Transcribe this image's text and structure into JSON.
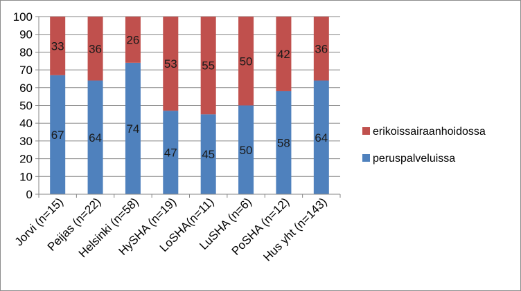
{
  "chart_data": {
    "type": "bar",
    "stacked": true,
    "categories": [
      "Jorvi (n=15)",
      "Peijas (n=22)",
      "Helsinki (n=58)",
      "HySHA (n=19)",
      "LoSHA(n=11)",
      "LuSHA (n=6)",
      "PoSHA (n=12)",
      "Hus yht (n=143)"
    ],
    "series": [
      {
        "name": "peruspalveluissa",
        "color": "#4f81bd",
        "values": [
          67,
          64,
          74,
          47,
          45,
          50,
          58,
          64
        ]
      },
      {
        "name": "erikoissairaanhoidossa",
        "color": "#c0504d",
        "values": [
          33,
          36,
          26,
          53,
          55,
          50,
          42,
          36
        ]
      }
    ],
    "ylim": [
      0,
      100
    ],
    "yticks": [
      0,
      10,
      20,
      30,
      40,
      50,
      60,
      70,
      80,
      90,
      100
    ],
    "grid": true,
    "legend_position": "right",
    "legend_order": [
      "erikoissairaanhoidossa",
      "peruspalveluissa"
    ],
    "title": "",
    "xlabel": "",
    "ylabel": ""
  }
}
